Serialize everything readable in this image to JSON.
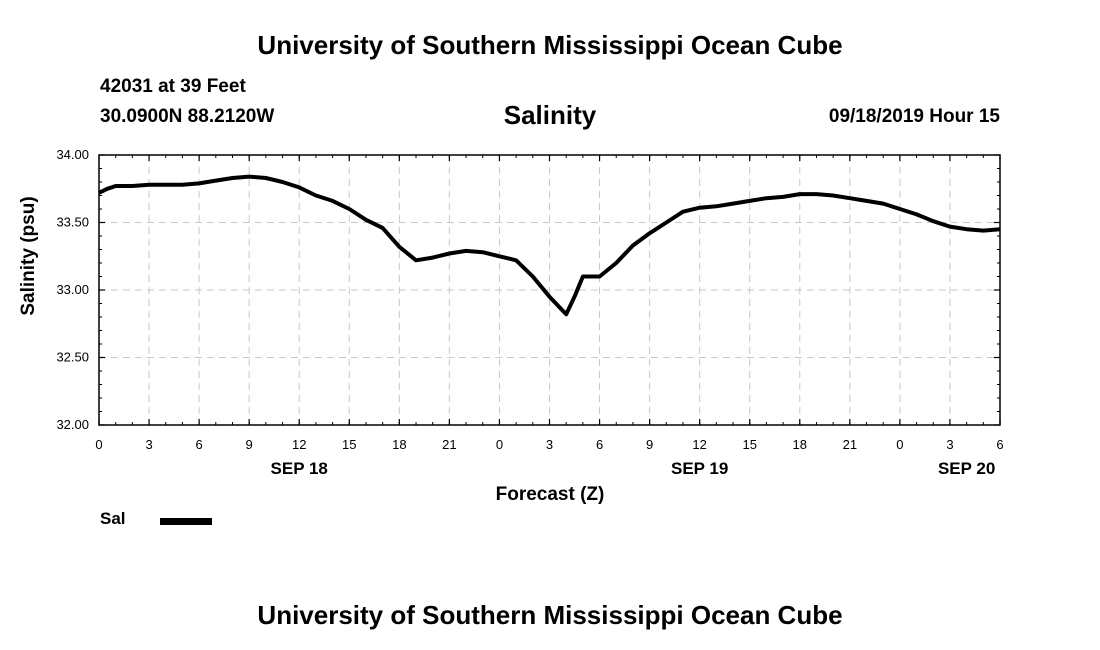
{
  "header": {
    "title": "University of Southern Mississippi Ocean Cube",
    "station": "42031 at 39 Feet",
    "coords": "30.0900N 88.2120W",
    "datetime": "09/18/2019 Hour 15"
  },
  "footer": {
    "title": "University of Southern Mississippi Ocean Cube"
  },
  "chart_data": {
    "type": "line",
    "title": "Salinity",
    "xlabel": "Forecast (Z)",
    "ylabel": "Salinity (psu)",
    "ylim": [
      32.0,
      34.0
    ],
    "xlim": [
      0,
      54
    ],
    "x_units": "hours from 09/18/2019 00Z",
    "y_ticks": [
      "32.00",
      "32.50",
      "33.00",
      "33.50",
      "34.00"
    ],
    "x_tick_labels": [
      "0",
      "3",
      "6",
      "9",
      "12",
      "15",
      "18",
      "21",
      "0",
      "3",
      "6",
      "9",
      "12",
      "15",
      "18",
      "21",
      "0",
      "3",
      "6"
    ],
    "date_labels": [
      {
        "label": "SEP 18",
        "x": 12
      },
      {
        "label": "SEP 19",
        "x": 36
      },
      {
        "label": "SEP 20",
        "x": 52
      }
    ],
    "grid": true,
    "legend": {
      "position": "bottom-left",
      "entries": [
        "Sal"
      ]
    },
    "series": [
      {
        "name": "Sal",
        "color": "#000000",
        "x": [
          0,
          0.5,
          1,
          2,
          3,
          4,
          5,
          6,
          7,
          8,
          9,
          10,
          11,
          12,
          13,
          14,
          15,
          16,
          17,
          18,
          19,
          20,
          21,
          22,
          23,
          24,
          25,
          26,
          27,
          28,
          28.5,
          29,
          30,
          31,
          32,
          33,
          34,
          35,
          36,
          37,
          38,
          39,
          40,
          41,
          42,
          43,
          44,
          45,
          46,
          47,
          48,
          49,
          50,
          51,
          52,
          53,
          54
        ],
        "y": [
          33.72,
          33.75,
          33.77,
          33.77,
          33.78,
          33.78,
          33.78,
          33.79,
          33.81,
          33.83,
          33.84,
          33.83,
          33.8,
          33.76,
          33.7,
          33.66,
          33.6,
          33.52,
          33.46,
          33.32,
          33.22,
          33.24,
          33.27,
          33.29,
          33.28,
          33.25,
          33.22,
          33.1,
          32.95,
          32.82,
          32.95,
          33.1,
          33.1,
          33.2,
          33.33,
          33.42,
          33.5,
          33.58,
          33.61,
          33.62,
          33.64,
          33.66,
          33.68,
          33.69,
          33.71,
          33.71,
          33.7,
          33.68,
          33.66,
          33.64,
          33.6,
          33.56,
          33.51,
          33.47,
          33.45,
          33.44,
          33.45
        ]
      }
    ]
  }
}
